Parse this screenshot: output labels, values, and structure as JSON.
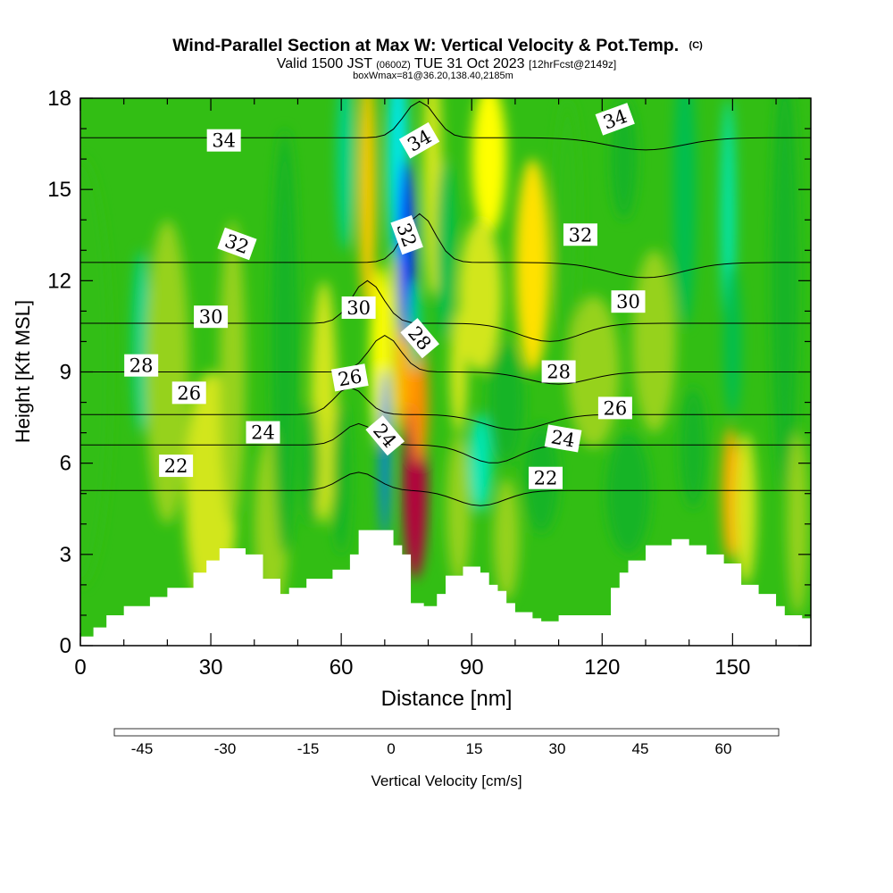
{
  "chart_data": {
    "type": "heatmap",
    "title": "Wind-Parallel Section at Max W: Vertical Velocity & Pot.Temp.",
    "title_mark": "(C)",
    "subtitle_parts": [
      "Valid 1500 JST",
      "(0600Z)",
      "TUE 31 Oct 2023",
      "[12hrFcst@2149z]"
    ],
    "subtitle2": "boxWmax=81@36.20,138.40,2185m",
    "xlabel": "Distance [nm]",
    "ylabel": "Height [Kft MSL]",
    "xlim": [
      0,
      168
    ],
    "ylim": [
      0,
      18
    ],
    "x_ticks": [
      "0",
      "30",
      "60",
      "90",
      "120",
      "150"
    ],
    "y_ticks": [
      "0",
      "3",
      "6",
      "9",
      "12",
      "15",
      "18"
    ],
    "colorbar": {
      "label": "Vertical Velocity [cm/s]",
      "ticks": [
        "-45",
        "-30",
        "-15",
        "0",
        "15",
        "30",
        "45",
        "60"
      ],
      "range": [
        -50,
        70
      ],
      "step": 5,
      "colors": [
        "#0000e6",
        "#0032ff",
        "#0078ff",
        "#00b4ff",
        "#00e6e6",
        "#00e6b4",
        "#00d28c",
        "#00be50",
        "#14b428",
        "#32be14",
        "#64c81e",
        "#96d21e",
        "#d2e61e",
        "#ffff00",
        "#ffe100",
        "#ffc800",
        "#ffaa00",
        "#ff8c00",
        "#ff6400",
        "#ff3c00",
        "#f00000",
        "#d2001e",
        "#b4003c",
        "#96005a"
      ]
    },
    "updraft_max": {
      "value": 81,
      "lat": 36.2,
      "lon": 138.4,
      "height_m": 2185
    },
    "cells": [
      {
        "x": 0,
        "y": 9,
        "rx": 7,
        "ry": 7,
        "w": -5
      },
      {
        "x": 14,
        "y": 10,
        "rx": 2,
        "ry": 3,
        "w": -18
      },
      {
        "x": 20,
        "y": 9,
        "rx": 5,
        "ry": 5,
        "w": 8
      },
      {
        "x": 30,
        "y": 5,
        "rx": 6,
        "ry": 4,
        "w": 10
      },
      {
        "x": 35,
        "y": 9,
        "rx": 3,
        "ry": 5,
        "w": 6
      },
      {
        "x": 44,
        "y": 4,
        "rx": 4,
        "ry": 3,
        "w": 9
      },
      {
        "x": 47,
        "y": 10,
        "rx": 3,
        "ry": 7,
        "w": -6
      },
      {
        "x": 56,
        "y": 8,
        "rx": 3,
        "ry": 4,
        "w": 14
      },
      {
        "x": 53,
        "y": 6,
        "rx": 2,
        "ry": 2,
        "w": -10
      },
      {
        "x": 66,
        "y": 15,
        "rx": 2,
        "ry": 4,
        "w": 25
      },
      {
        "x": 69,
        "y": 9.5,
        "rx": 2.4,
        "ry": 3,
        "w": 15
      },
      {
        "x": 61,
        "y": 16,
        "rx": 2,
        "ry": 3,
        "w": -20
      },
      {
        "x": 60,
        "y": 5.5,
        "rx": 2,
        "ry": 2.5,
        "w": -10
      },
      {
        "x": 70,
        "y": 6.3,
        "rx": 1.1,
        "ry": 2.8,
        "w": -40
      },
      {
        "x": 72,
        "y": 10,
        "rx": 1.3,
        "ry": 3.2,
        "w": 10
      },
      {
        "x": 75,
        "y": 9,
        "rx": 2.2,
        "ry": 2.2,
        "w": 30
      },
      {
        "x": 77,
        "y": 5.2,
        "rx": 2.8,
        "ry": 3,
        "w": 60
      },
      {
        "x": 78,
        "y": 8,
        "rx": 2,
        "ry": 2,
        "w": 38
      },
      {
        "x": 73,
        "y": 16,
        "rx": 2.4,
        "ry": 3.5,
        "w": -30
      },
      {
        "x": 75,
        "y": 13,
        "rx": 2,
        "ry": 3,
        "w": -42
      },
      {
        "x": 77,
        "y": 10.5,
        "rx": 1.5,
        "ry": 1.5,
        "w": -20
      },
      {
        "x": 81,
        "y": 15.5,
        "rx": 2.2,
        "ry": 4,
        "w": 14
      },
      {
        "x": 84,
        "y": 13,
        "rx": 2.2,
        "ry": 3,
        "w": -12
      },
      {
        "x": 87,
        "y": 9,
        "rx": 2,
        "ry": 2,
        "w": 14
      },
      {
        "x": 87,
        "y": 4.5,
        "rx": 2.8,
        "ry": 2.5,
        "w": 9
      },
      {
        "x": 94,
        "y": 16,
        "rx": 4,
        "ry": 2.5,
        "w": 16
      },
      {
        "x": 92,
        "y": 11.5,
        "rx": 5,
        "ry": 2.5,
        "w": 12
      },
      {
        "x": 92,
        "y": 6,
        "rx": 2.6,
        "ry": 1.6,
        "w": -22
      },
      {
        "x": 98,
        "y": 8,
        "rx": 4,
        "ry": 2,
        "w": -10
      },
      {
        "x": 98,
        "y": 3.5,
        "rx": 3,
        "ry": 2,
        "w": 6
      },
      {
        "x": 104,
        "y": 12.5,
        "rx": 4,
        "ry": 3.5,
        "w": 20
      },
      {
        "x": 106,
        "y": 5.5,
        "rx": 4,
        "ry": 1.8,
        "w": -8
      },
      {
        "x": 112,
        "y": 14,
        "rx": 3,
        "ry": 4,
        "w": -5
      },
      {
        "x": 118,
        "y": 9,
        "rx": 6,
        "ry": 2.5,
        "w": 8
      },
      {
        "x": 125,
        "y": 16,
        "rx": 3,
        "ry": 2,
        "w": -8
      },
      {
        "x": 126,
        "y": 5,
        "rx": 5,
        "ry": 2,
        "w": -10
      },
      {
        "x": 132,
        "y": 10,
        "rx": 5,
        "ry": 3,
        "w": 7
      },
      {
        "x": 139,
        "y": 15,
        "rx": 2.6,
        "ry": 4.5,
        "w": -12
      },
      {
        "x": 141,
        "y": 6.5,
        "rx": 3,
        "ry": 2,
        "w": -8
      },
      {
        "x": 149,
        "y": 14,
        "rx": 1.6,
        "ry": 4,
        "w": -22
      },
      {
        "x": 150,
        "y": 10,
        "rx": 2,
        "ry": 2.5,
        "w": -12
      },
      {
        "x": 149.5,
        "y": 5,
        "rx": 2,
        "ry": 2.2,
        "w": 32
      },
      {
        "x": 153,
        "y": 4.5,
        "rx": 2.5,
        "ry": 2.5,
        "w": 12
      },
      {
        "x": 162,
        "y": 12,
        "rx": 3,
        "ry": 7,
        "w": -6
      },
      {
        "x": 165,
        "y": 4,
        "rx": 2.5,
        "ry": 3,
        "w": 8
      }
    ],
    "terrain": [
      [
        0,
        0.3
      ],
      [
        3,
        0.6
      ],
      [
        6,
        1.0
      ],
      [
        10,
        1.3
      ],
      [
        16,
        1.6
      ],
      [
        20,
        1.9
      ],
      [
        26,
        2.4
      ],
      [
        29,
        2.8
      ],
      [
        32,
        3.2
      ],
      [
        38,
        3.0
      ],
      [
        42,
        2.2
      ],
      [
        46,
        1.7
      ],
      [
        48,
        1.9
      ],
      [
        52,
        2.2
      ],
      [
        58,
        2.5
      ],
      [
        62,
        3.0
      ],
      [
        64,
        3.8
      ],
      [
        70,
        3.8
      ],
      [
        72,
        3.3
      ],
      [
        74,
        3.0
      ],
      [
        76,
        1.4
      ],
      [
        79,
        1.3
      ],
      [
        82,
        1.7
      ],
      [
        84,
        2.3
      ],
      [
        88,
        2.6
      ],
      [
        92,
        2.4
      ],
      [
        94,
        2.0
      ],
      [
        96,
        1.8
      ],
      [
        98,
        1.4
      ],
      [
        100,
        1.1
      ],
      [
        104,
        0.9
      ],
      [
        106,
        0.8
      ],
      [
        110,
        1.0
      ],
      [
        120,
        1.0
      ],
      [
        122,
        1.9
      ],
      [
        124,
        2.4
      ],
      [
        126,
        2.8
      ],
      [
        130,
        3.3
      ],
      [
        136,
        3.5
      ],
      [
        140,
        3.3
      ],
      [
        144,
        3.0
      ],
      [
        148,
        2.7
      ],
      [
        152,
        2.0
      ],
      [
        156,
        1.7
      ],
      [
        160,
        1.3
      ],
      [
        162,
        1.0
      ],
      [
        166,
        0.9
      ],
      [
        168,
        0.9
      ]
    ],
    "isentropes": [
      {
        "level": 22,
        "base": 5.1,
        "bend": [
          [
            64,
            0.6,
            6
          ],
          [
            92,
            -0.5,
            8
          ]
        ]
      },
      {
        "level": 24,
        "base": 6.6,
        "bend": [
          [
            64,
            0.7,
            5
          ],
          [
            95,
            -0.6,
            8
          ]
        ]
      },
      {
        "level": 26,
        "base": 7.6,
        "bend": [
          [
            62,
            0.9,
            5
          ],
          [
            100,
            -0.5,
            10
          ]
        ]
      },
      {
        "level": 28,
        "base": 9.0,
        "bend": [
          [
            70,
            1.2,
            5
          ],
          [
            110,
            -0.4,
            10
          ]
        ]
      },
      {
        "level": 30,
        "base": 10.6,
        "bend": [
          [
            66,
            1.4,
            5
          ],
          [
            108,
            -0.6,
            10
          ]
        ]
      },
      {
        "level": 32,
        "base": 12.6,
        "bend": [
          [
            78,
            1.6,
            5
          ],
          [
            130,
            -0.5,
            12
          ]
        ]
      },
      {
        "level": 34,
        "base": 16.7,
        "bend": [
          [
            78,
            1.2,
            5
          ],
          [
            130,
            -0.4,
            12
          ]
        ]
      }
    ],
    "isentrope_labels": [
      {
        "text": "34",
        "x": 33,
        "y": 16.6,
        "rot": 0
      },
      {
        "text": "34",
        "x": 78,
        "y": 16.6,
        "rot": -30
      },
      {
        "text": "34",
        "x": 123,
        "y": 17.3,
        "rot": -20
      },
      {
        "text": "32",
        "x": 36,
        "y": 13.2,
        "rot": 20
      },
      {
        "text": "32",
        "x": 75,
        "y": 13.5,
        "rot": 70
      },
      {
        "text": "32",
        "x": 115,
        "y": 13.5,
        "rot": 0
      },
      {
        "text": "30",
        "x": 30,
        "y": 10.8,
        "rot": 0
      },
      {
        "text": "30",
        "x": 64,
        "y": 11.1,
        "rot": 0
      },
      {
        "text": "30",
        "x": 126,
        "y": 11.3,
        "rot": 0
      },
      {
        "text": "28",
        "x": 14,
        "y": 9.2,
        "rot": 0
      },
      {
        "text": "28",
        "x": 78,
        "y": 10.1,
        "rot": 50
      },
      {
        "text": "28",
        "x": 110,
        "y": 9.0,
        "rot": 0
      },
      {
        "text": "26",
        "x": 25,
        "y": 8.3,
        "rot": 0
      },
      {
        "text": "26",
        "x": 62,
        "y": 8.8,
        "rot": -10
      },
      {
        "text": "26",
        "x": 123,
        "y": 7.8,
        "rot": 0
      },
      {
        "text": "24",
        "x": 42,
        "y": 7.0,
        "rot": 0
      },
      {
        "text": "24",
        "x": 70,
        "y": 6.9,
        "rot": 50
      },
      {
        "text": "24",
        "x": 111,
        "y": 6.8,
        "rot": 10
      },
      {
        "text": "22",
        "x": 22,
        "y": 5.9,
        "rot": 0
      },
      {
        "text": "22",
        "x": 107,
        "y": 5.5,
        "rot": 0
      }
    ]
  }
}
